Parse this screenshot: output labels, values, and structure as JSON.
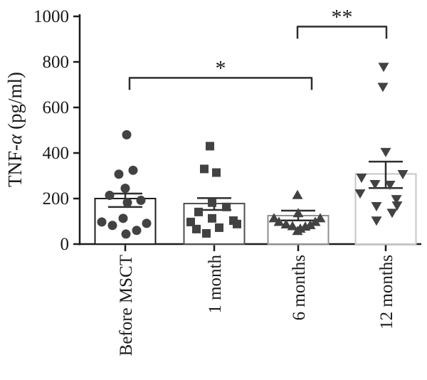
{
  "figure": {
    "background": "#ffffff",
    "text_color": "#1a1a1a"
  },
  "chart_data": {
    "type": "bar-scatter",
    "title": "",
    "ylabel": "TNF-α (pg/ml)",
    "xlabel": "",
    "ylim": [
      0,
      1000
    ],
    "yticks": [
      0,
      200,
      400,
      600,
      800,
      1000
    ],
    "grid": false,
    "legend_position": "none",
    "categories": [
      "Before MSCT",
      "1 month",
      "6 months",
      "12 months"
    ],
    "marker_color": "#424242",
    "error_bar_color": "#2e2e2e",
    "axis_color": "#1a1a1a",
    "bar_fill": "#ffffff",
    "groups": [
      {
        "label": "Before MSCT",
        "marker": "circle",
        "bar_outline": "#1c1c1c",
        "mean": 200,
        "sem_upper": 222,
        "sem_lower": 163,
        "points": [
          [
            2,
            480
          ],
          [
            11,
            324
          ],
          [
            -9,
            307
          ],
          [
            0,
            245
          ],
          [
            -22,
            214
          ],
          [
            22,
            192
          ],
          [
            3,
            182
          ],
          [
            -3,
            113
          ],
          [
            -33,
            97
          ],
          [
            30,
            91
          ],
          [
            -18,
            82
          ],
          [
            16,
            60
          ],
          [
            1,
            44
          ]
        ]
      },
      {
        "label": "1 month",
        "marker": "square",
        "bar_outline": "#4f4f4f",
        "mean": 178,
        "sem_upper": 202,
        "sem_lower": 150,
        "points": [
          [
            -6,
            430
          ],
          [
            -14,
            330
          ],
          [
            3,
            314
          ],
          [
            -3,
            182
          ],
          [
            17,
            163
          ],
          [
            -22,
            141
          ],
          [
            -3,
            113
          ],
          [
            27,
            103
          ],
          [
            -33,
            97
          ],
          [
            32,
            88
          ],
          [
            7,
            72
          ],
          [
            -25,
            66
          ],
          [
            -11,
            47
          ]
        ]
      },
      {
        "label": "6 months",
        "marker": "triangle-up",
        "bar_outline": "#8f8f8f",
        "mean": 125,
        "sem_upper": 147,
        "sem_lower": 104,
        "points": [
          [
            -1,
            215
          ],
          [
            0,
            135
          ],
          [
            -34,
            113
          ],
          [
            -27,
            97
          ],
          [
            -17,
            86
          ],
          [
            -8,
            78
          ],
          [
            -1,
            57
          ],
          [
            3,
            67
          ],
          [
            10,
            76
          ],
          [
            17,
            83
          ],
          [
            24,
            97
          ],
          [
            31,
            113
          ]
        ]
      },
      {
        "label": "12 months",
        "marker": "triangle-down",
        "bar_outline": "#c6c6c6",
        "mean": 308,
        "sem_upper": 362,
        "sem_lower": 246,
        "points": [
          [
            -3,
            779
          ],
          [
            -4,
            691
          ],
          [
            0,
            405
          ],
          [
            24,
            308
          ],
          [
            -34,
            292
          ],
          [
            -15,
            264
          ],
          [
            6,
            261
          ],
          [
            -36,
            223
          ],
          [
            15,
            198
          ],
          [
            16,
            170
          ],
          [
            -13,
            167
          ],
          [
            9,
            138
          ],
          [
            -13,
            104
          ]
        ]
      }
    ],
    "significance": [
      {
        "label": "*",
        "from_group": 0,
        "to_group": 2,
        "x1_dx": 6,
        "x2_dx": 19,
        "y_value": 730
      },
      {
        "label": "**",
        "from_group": 2,
        "to_group": 3,
        "x1_dx": -1,
        "x2_dx": 1,
        "y_value": 955
      }
    ]
  }
}
